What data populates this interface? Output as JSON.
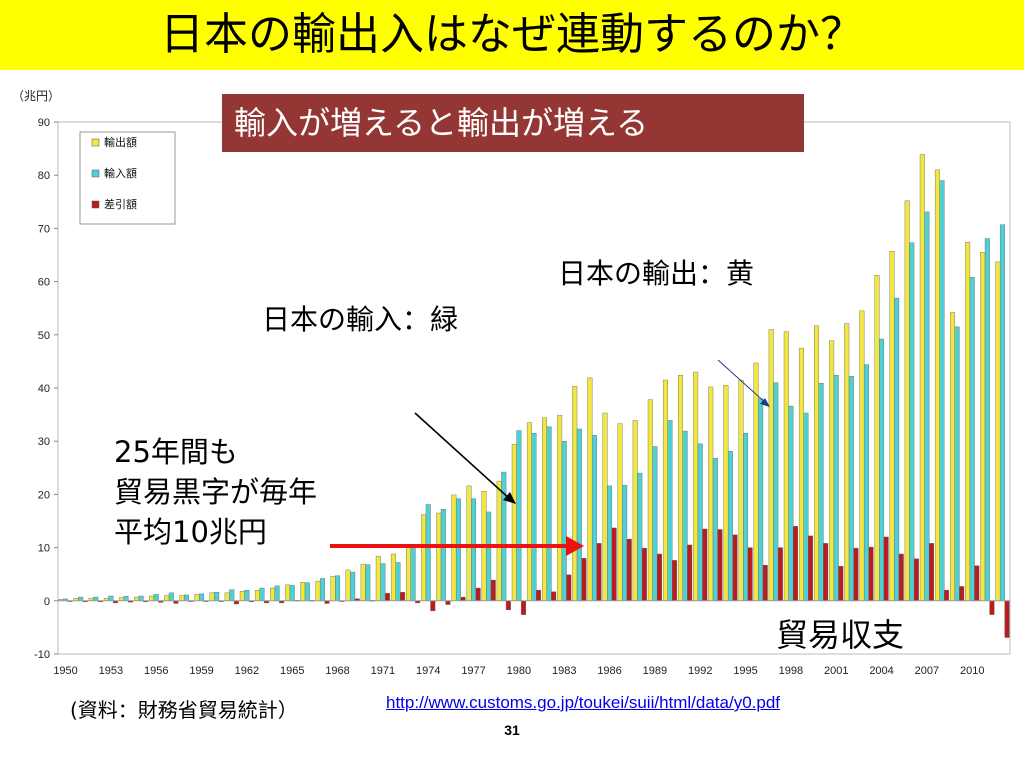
{
  "slide": {
    "title": "日本の輸出入はなぜ連動するのか？",
    "callout": "輸入が増えると輸出が増える",
    "label_exports": "日本の輸出：黄",
    "label_imports": "日本の輸入：緑",
    "note_lines": [
      "25年間も",
      "貿易黒字が毎年",
      "平均10兆円"
    ],
    "label_balance": "貿易収支",
    "source": "(資料：財務省貿易統計）",
    "url": "http://www.customs.go.jp/toukei/suii/html/data/y0.pdf",
    "page_number": "31"
  },
  "chart_data": {
    "type": "bar",
    "y_unit": "（兆円）",
    "ylim": [
      -10,
      90
    ],
    "y_ticks": [
      -10,
      0,
      10,
      20,
      30,
      40,
      50,
      60,
      70,
      80,
      90
    ],
    "x_tick_labels": [
      "1950",
      "1953",
      "1956",
      "1959",
      "1962",
      "1965",
      "1968",
      "1971",
      "1974",
      "1977",
      "1980",
      "1983",
      "1986",
      "1989",
      "1992",
      "1995",
      "1998",
      "2001",
      "2004",
      "2007",
      "2010"
    ],
    "categories": [
      "1950",
      "1951",
      "1952",
      "1953",
      "1954",
      "1955",
      "1956",
      "1957",
      "1958",
      "1959",
      "1960",
      "1961",
      "1962",
      "1963",
      "1964",
      "1965",
      "1966",
      "1967",
      "1968",
      "1969",
      "1970",
      "1971",
      "1972",
      "1973",
      "1974",
      "1975",
      "1976",
      "1977",
      "1978",
      "1979",
      "1980",
      "1981",
      "1982",
      "1983",
      "1984",
      "1985",
      "1986",
      "1987",
      "1988",
      "1989",
      "1990",
      "1991",
      "1992",
      "1993",
      "1994",
      "1995",
      "1996",
      "1997",
      "1998",
      "1999",
      "2000",
      "2001",
      "2002",
      "2003",
      "2004",
      "2005",
      "2006",
      "2007",
      "2008",
      "2009",
      "2010",
      "2011",
      "2012"
    ],
    "legend_position": "top-left",
    "grid": false,
    "series": [
      {
        "name": "輸出額",
        "color": "#f2e640",
        "values": [
          0.3,
          0.5,
          0.5,
          0.5,
          0.6,
          0.7,
          0.9,
          1.0,
          1.0,
          1.2,
          1.5,
          1.5,
          1.8,
          2.0,
          2.4,
          3.0,
          3.5,
          3.7,
          4.6,
          5.8,
          6.9,
          8.4,
          8.8,
          10.0,
          16.2,
          16.5,
          19.9,
          21.6,
          20.6,
          22.5,
          29.4,
          33.5,
          34.4,
          34.9,
          40.3,
          41.9,
          35.3,
          33.3,
          33.9,
          37.8,
          41.5,
          42.4,
          43.0,
          40.2,
          40.5,
          41.5,
          44.7,
          51.0,
          50.6,
          47.5,
          51.7,
          48.9,
          52.1,
          54.5,
          61.2,
          65.7,
          75.2,
          83.9,
          81.0,
          54.2,
          67.4,
          65.5,
          63.7
        ]
      },
      {
        "name": "輸入額",
        "color": "#4fd0d6",
        "values": [
          0.35,
          0.7,
          0.7,
          0.9,
          0.85,
          0.9,
          1.2,
          1.5,
          1.1,
          1.3,
          1.6,
          2.1,
          2.0,
          2.4,
          2.8,
          2.9,
          3.4,
          4.2,
          4.7,
          5.4,
          6.8,
          7.0,
          7.2,
          10.4,
          18.1,
          17.2,
          19.2,
          19.2,
          16.7,
          24.2,
          32.0,
          31.5,
          32.7,
          30.0,
          32.3,
          31.1,
          21.6,
          21.7,
          24.0,
          29.0,
          33.9,
          31.9,
          29.5,
          26.8,
          28.1,
          31.5,
          38.0,
          41.0,
          36.6,
          35.3,
          40.9,
          42.4,
          42.2,
          44.4,
          49.2,
          56.9,
          67.3,
          73.1,
          79.0,
          51.5,
          60.8,
          68.1,
          70.7
        ]
      },
      {
        "name": "差引額",
        "color": "#b81c1c",
        "values": [
          -0.05,
          -0.2,
          -0.2,
          -0.4,
          -0.25,
          -0.2,
          -0.3,
          -0.5,
          -0.1,
          -0.1,
          -0.1,
          -0.6,
          -0.2,
          -0.4,
          -0.4,
          0.1,
          0.1,
          -0.5,
          -0.1,
          0.4,
          0.1,
          1.4,
          1.6,
          -0.4,
          -1.9,
          -0.7,
          0.7,
          2.4,
          3.9,
          -1.7,
          -2.6,
          2.0,
          1.7,
          4.9,
          8.0,
          10.8,
          13.7,
          11.6,
          9.9,
          8.8,
          7.6,
          10.5,
          13.5,
          13.4,
          12.4,
          10.0,
          6.7,
          10.0,
          14.0,
          12.2,
          10.8,
          6.5,
          9.9,
          10.1,
          12.0,
          8.8,
          7.9,
          10.8,
          2.0,
          2.7,
          6.6,
          -2.6,
          -6.9
        ]
      }
    ]
  },
  "colors": {
    "title_bg": "#ffff00",
    "callout_bg": "#943634",
    "arrow_red": "#ee1111",
    "link_blue": "#0000ee"
  }
}
